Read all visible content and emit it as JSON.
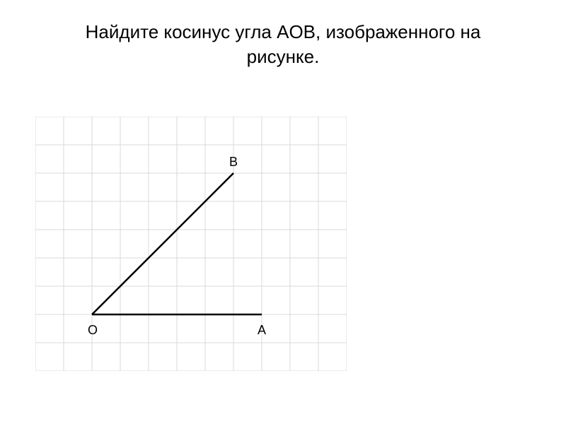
{
  "title_line1": "Найдите косинус угла AOB, изображенного на",
  "title_line2": "рисунке.",
  "title_fontsize": 26,
  "title_color": "#000000",
  "diagram": {
    "type": "diagram",
    "grid": {
      "cols": 11,
      "rows": 9,
      "cell_size": 40,
      "line_color": "#d8d8d8",
      "background_color": "#ffffff"
    },
    "points": {
      "O": {
        "gx": 2,
        "gy": 7,
        "label": "O",
        "label_dx": -6,
        "label_dy": 28
      },
      "A": {
        "gx": 8,
        "gy": 7,
        "label": "A",
        "label_dx": -6,
        "label_dy": 28
      },
      "B": {
        "gx": 7,
        "gy": 2,
        "label": "B",
        "label_dx": -6,
        "label_dy": -10
      }
    },
    "lines": [
      {
        "from": "O",
        "to": "A"
      },
      {
        "from": "O",
        "to": "B"
      }
    ],
    "line_color": "#000000",
    "line_width": 2.5,
    "label_fontsize": 18
  }
}
